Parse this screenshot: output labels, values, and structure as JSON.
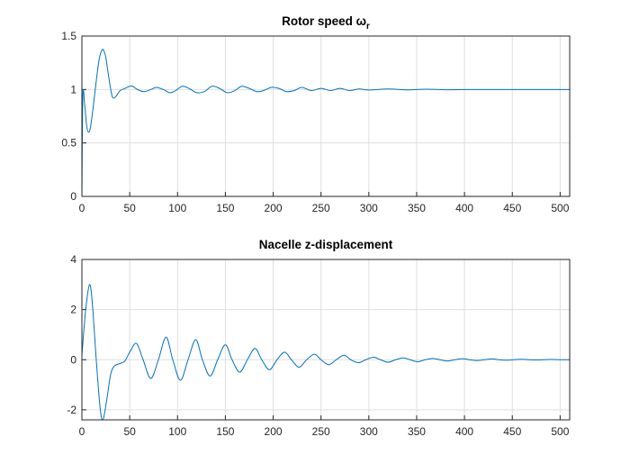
{
  "chart_data": [
    {
      "type": "line",
      "title": "Rotor speed ω",
      "title_subscript": "r",
      "color": "#0072bd",
      "grid": true,
      "xlim": [
        0,
        510
      ],
      "xticks": [
        0,
        50,
        100,
        150,
        200,
        250,
        300,
        350,
        400,
        450,
        500
      ],
      "ylim": [
        0,
        1.5
      ],
      "yticks": [
        0,
        0.5,
        1,
        1.5
      ],
      "x": [
        0,
        1,
        3,
        5,
        7,
        9,
        12,
        15,
        18,
        21,
        23,
        25,
        28,
        31,
        33,
        36,
        40,
        45,
        50,
        53,
        58,
        65,
        72,
        78,
        85,
        92,
        98,
        105,
        112,
        120,
        128,
        136,
        144,
        152,
        160,
        167,
        175,
        183,
        190,
        198,
        206,
        214,
        222,
        230,
        240,
        250,
        260,
        270,
        280,
        290,
        300,
        320,
        340,
        360,
        380,
        400,
        420,
        440,
        460,
        480,
        500,
        510
      ],
      "values": [
        0,
        0.95,
        0.85,
        0.66,
        0.6,
        0.65,
        0.85,
        1.08,
        1.28,
        1.37,
        1.36,
        1.3,
        1.12,
        0.96,
        0.92,
        0.94,
        0.99,
        1.01,
        1.03,
        1.03,
        1.0,
        0.98,
        1.0,
        1.02,
        1.0,
        0.97,
        0.99,
        1.03,
        1.01,
        0.97,
        0.98,
        1.03,
        1.01,
        0.97,
        0.99,
        1.03,
        1.01,
        0.98,
        0.99,
        1.02,
        1.01,
        0.98,
        0.99,
        1.02,
        0.99,
        1.01,
        0.99,
        1.01,
        0.99,
        1.005,
        0.995,
        1.005,
        0.997,
        1.003,
        0.998,
        1,
        1,
        1,
        1,
        1,
        1,
        1
      ]
    },
    {
      "type": "line",
      "title": "Nacelle z-displacement",
      "color": "#0072bd",
      "grid": true,
      "xlim": [
        0,
        510
      ],
      "xticks": [
        0,
        50,
        100,
        150,
        200,
        250,
        300,
        350,
        400,
        450,
        500
      ],
      "ylim": [
        -2.4,
        4
      ],
      "yticks": [
        -2,
        0,
        2,
        4
      ],
      "x": [
        0,
        4,
        8,
        11,
        15,
        19,
        22,
        26,
        30,
        34,
        40,
        45,
        50,
        57,
        64,
        72,
        80,
        88,
        95,
        103,
        111,
        119,
        126,
        134,
        142,
        150,
        157,
        165,
        173,
        181,
        188,
        196,
        204,
        212,
        219,
        227,
        235,
        243,
        250,
        258,
        266,
        274,
        281,
        289,
        297,
        305,
        312,
        320,
        328,
        336,
        343,
        351,
        359,
        367,
        374,
        382,
        390,
        398,
        405,
        413,
        421,
        429,
        436,
        444,
        452,
        460,
        467,
        475,
        483,
        491,
        500,
        510
      ],
      "values": [
        0.2,
        2.0,
        3.0,
        2.2,
        0,
        -1.9,
        -2.4,
        -1.6,
        -0.6,
        -0.25,
        -0.15,
        -0.05,
        0.3,
        0.65,
        0,
        -0.75,
        0,
        0.9,
        0,
        -0.82,
        0,
        0.8,
        0,
        -0.65,
        0,
        0.6,
        0,
        -0.5,
        0,
        0.45,
        0,
        -0.4,
        0,
        0.3,
        0,
        -0.3,
        0,
        0.22,
        0,
        -0.2,
        0,
        0.18,
        0,
        -0.12,
        0,
        0.1,
        0,
        -0.1,
        0,
        0.07,
        0,
        -0.08,
        0,
        0.05,
        0,
        -0.05,
        0,
        0.04,
        0,
        -0.03,
        0,
        0.03,
        0,
        -0.02,
        0,
        0.02,
        0,
        -0.01,
        0,
        0.01,
        0,
        0
      ]
    }
  ]
}
